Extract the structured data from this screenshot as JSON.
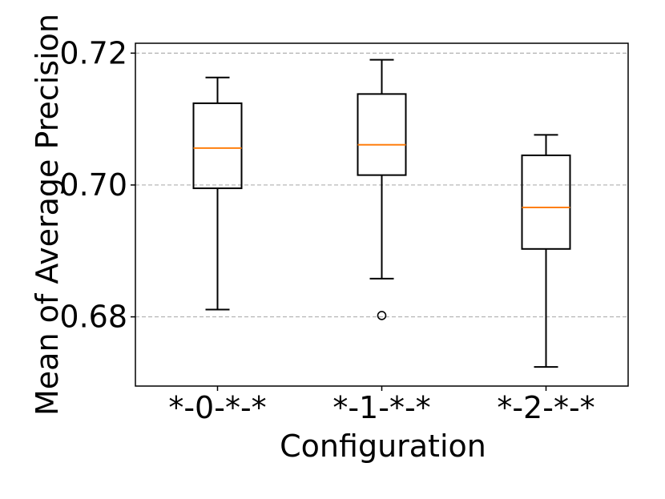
{
  "chart_data": {
    "type": "box",
    "xlabel": "Configuration",
    "ylabel": "Mean of Average Precision",
    "ylim": [
      0.6695,
      0.7215
    ],
    "yticks": [
      0.68,
      0.7,
      0.72
    ],
    "ytick_labels": [
      "0.68",
      "0.70",
      "0.72"
    ],
    "grid": "y-dashed",
    "categories": [
      "*-0-*-*",
      "*-1-*-*",
      "*-2-*-*"
    ],
    "boxes": [
      {
        "category": "*-0-*-*",
        "whisker_low": 0.6811,
        "q1": 0.6995,
        "median": 0.7056,
        "q3": 0.7124,
        "whisker_high": 0.7163,
        "outliers": []
      },
      {
        "category": "*-1-*-*",
        "whisker_low": 0.6858,
        "q1": 0.7015,
        "median": 0.7061,
        "q3": 0.7138,
        "whisker_high": 0.719,
        "outliers": [
          0.6802
        ]
      },
      {
        "category": "*-2-*-*",
        "whisker_low": 0.6724,
        "q1": 0.6903,
        "median": 0.6966,
        "q3": 0.7045,
        "whisker_high": 0.7076,
        "outliers": []
      }
    ]
  }
}
